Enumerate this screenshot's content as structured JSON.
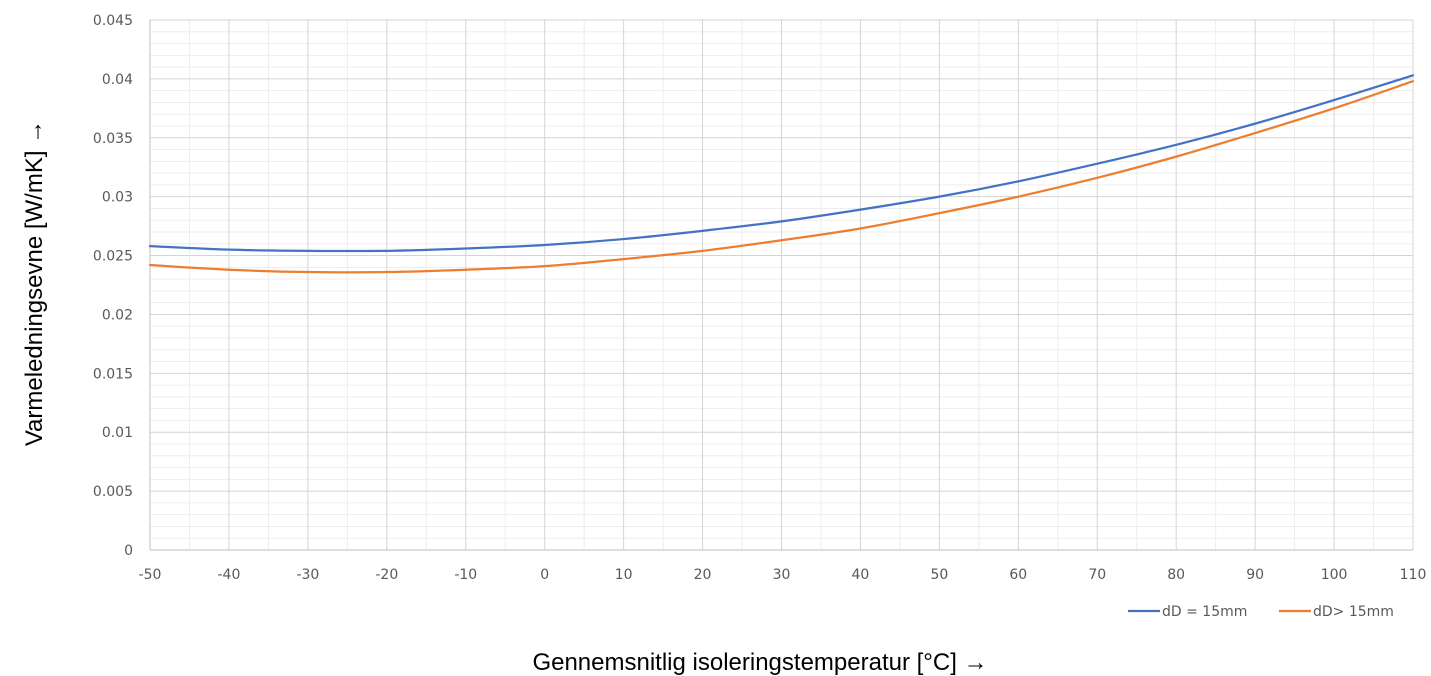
{
  "chart_data": {
    "type": "line",
    "title": "",
    "xlabel": "Gennemsnitlig isoleringstemperatur [°C] →",
    "ylabel": "Varmeledningsevne [W/mK] →",
    "xlim": [
      -50,
      110
    ],
    "ylim": [
      0,
      0.045
    ],
    "x_ticks": [
      "-50",
      "-40",
      "-30",
      "-20",
      "-10",
      "0",
      "10",
      "20",
      "30",
      "40",
      "50",
      "60",
      "70",
      "80",
      "90",
      "100",
      "110"
    ],
    "y_ticks": [
      "0",
      "0.005",
      "0.01",
      "0.015",
      "0.02",
      "0.025",
      "0.03",
      "0.035",
      "0.04",
      "0.045"
    ],
    "grid": true,
    "legend_position": "bottom-right",
    "x": [
      -50,
      -40,
      -30,
      -20,
      -10,
      0,
      10,
      20,
      30,
      40,
      50,
      60,
      70,
      80,
      90,
      100,
      110
    ],
    "series": [
      {
        "name": "dD = 15mm",
        "color": "#4472C4",
        "values": [
          0.0258,
          0.0255,
          0.0254,
          0.0254,
          0.0256,
          0.0259,
          0.0264,
          0.0271,
          0.0279,
          0.0289,
          0.03,
          0.0313,
          0.0328,
          0.0344,
          0.0362,
          0.0382,
          0.0403
        ]
      },
      {
        "name": "dD> 15mm",
        "color": "#ED7D31",
        "values": [
          0.0242,
          0.0238,
          0.0236,
          0.0236,
          0.0238,
          0.0241,
          0.0247,
          0.0254,
          0.0263,
          0.0273,
          0.0286,
          0.03,
          0.0316,
          0.0334,
          0.0354,
          0.0375,
          0.0398
        ]
      }
    ]
  }
}
